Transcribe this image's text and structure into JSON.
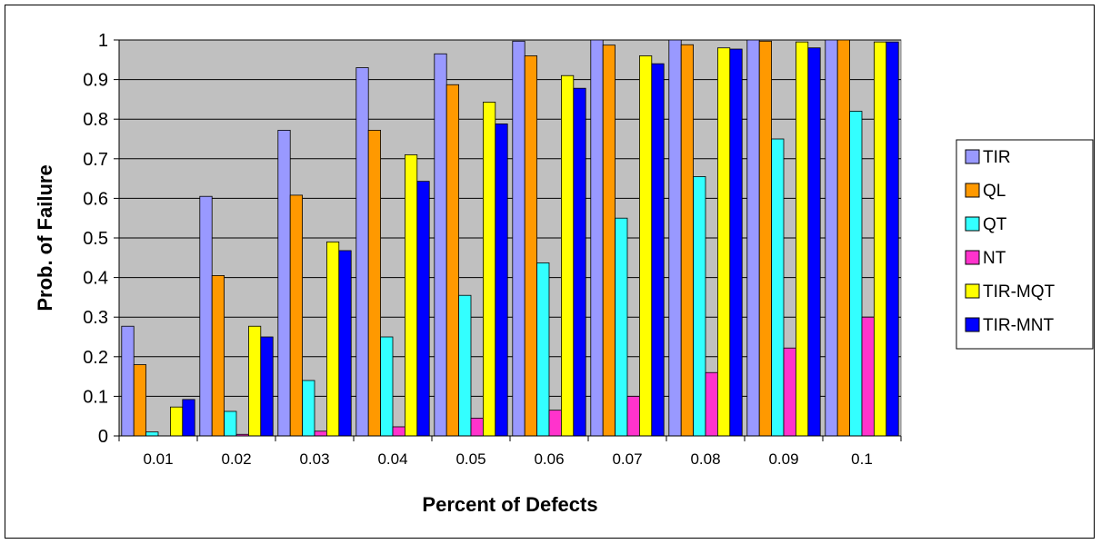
{
  "chart_data": {
    "type": "bar",
    "title": "",
    "xlabel": "Percent of Defects",
    "ylabel": "Prob. of Failure",
    "ylim": [
      0,
      1
    ],
    "yticks": [
      "0",
      "0.1",
      "0.2",
      "0.3",
      "0.4",
      "0.5",
      "0.6",
      "0.7",
      "0.8",
      "0.9",
      "1"
    ],
    "grid": true,
    "legend_position": "right",
    "categories": [
      "0.01",
      "0.02",
      "0.03",
      "0.04",
      "0.05",
      "0.06",
      "0.07",
      "0.08",
      "0.09",
      "0.1"
    ],
    "series": [
      {
        "name": "TIR",
        "color": "#9999FF",
        "values": [
          0.277,
          0.605,
          0.772,
          0.93,
          0.965,
          0.997,
          1.0,
          1.0,
          1.0,
          1.0
        ]
      },
      {
        "name": "QL",
        "color": "#FF9900",
        "values": [
          0.18,
          0.405,
          0.608,
          0.772,
          0.887,
          0.96,
          0.987,
          0.988,
          0.997,
          1.0
        ]
      },
      {
        "name": "QT",
        "color": "#33FFFF",
        "values": [
          0.01,
          0.062,
          0.14,
          0.25,
          0.355,
          0.437,
          0.55,
          0.655,
          0.75,
          0.82
        ]
      },
      {
        "name": "NT",
        "color": "#FF33CC",
        "values": [
          0.0,
          0.004,
          0.012,
          0.023,
          0.045,
          0.065,
          0.1,
          0.16,
          0.222,
          0.3
        ]
      },
      {
        "name": "TIR-MQT",
        "color": "#FFFF00",
        "values": [
          0.073,
          0.277,
          0.49,
          0.71,
          0.843,
          0.91,
          0.96,
          0.98,
          0.995,
          0.995
        ]
      },
      {
        "name": "TIR-MNT",
        "color": "#0000FF",
        "values": [
          0.092,
          0.25,
          0.468,
          0.643,
          0.788,
          0.878,
          0.94,
          0.977,
          0.98,
          0.995
        ]
      }
    ]
  }
}
